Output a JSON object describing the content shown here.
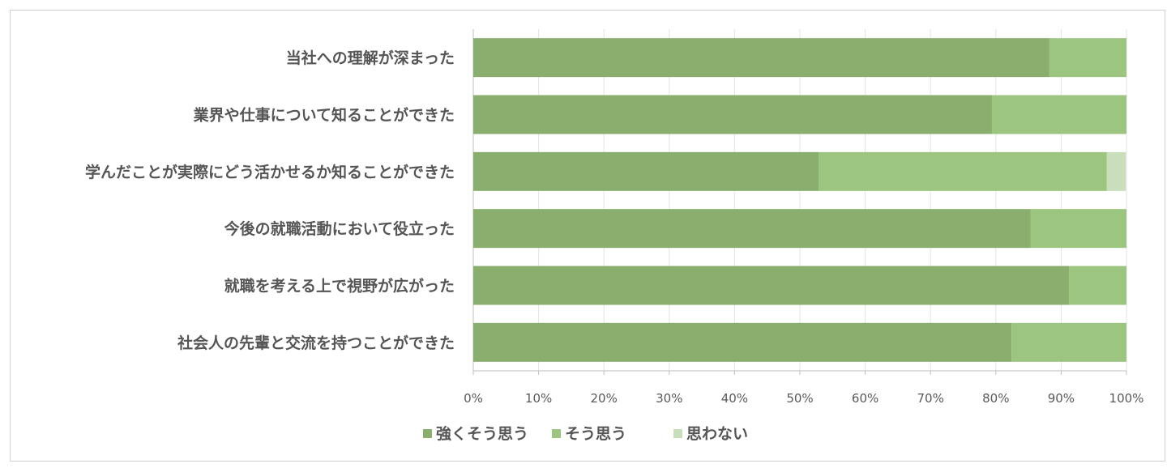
{
  "chart_data": {
    "type": "bar",
    "orientation": "horizontal",
    "stacked": "percent",
    "categories": [
      "当社への理解が深まった",
      "業界や仕事について知ることができた",
      "学んだことが実際にどう活かせるか知ることができた",
      "今後の就職活動において役立った",
      "就職を考える上で視野が広がった",
      "社会人の先輩と交流を持つことができた"
    ],
    "series": [
      {
        "name": "強くそう思う",
        "color": "#8aae6e",
        "values": [
          88.2,
          79.4,
          52.9,
          85.3,
          91.2,
          82.4
        ]
      },
      {
        "name": "そう思う",
        "color": "#9cc57f",
        "values": [
          11.8,
          20.6,
          44.1,
          14.7,
          8.8,
          17.6
        ]
      },
      {
        "name": "思わない",
        "color": "#c9dfbb",
        "values": [
          0,
          0,
          2.9,
          0,
          0,
          0
        ]
      }
    ],
    "xlim": [
      0,
      100
    ],
    "xticks": [
      "0%",
      "10%",
      "20%",
      "30%",
      "40%",
      "50%",
      "60%",
      "70%",
      "80%",
      "90%",
      "100%"
    ],
    "grid": true,
    "legend_position": "bottom"
  }
}
